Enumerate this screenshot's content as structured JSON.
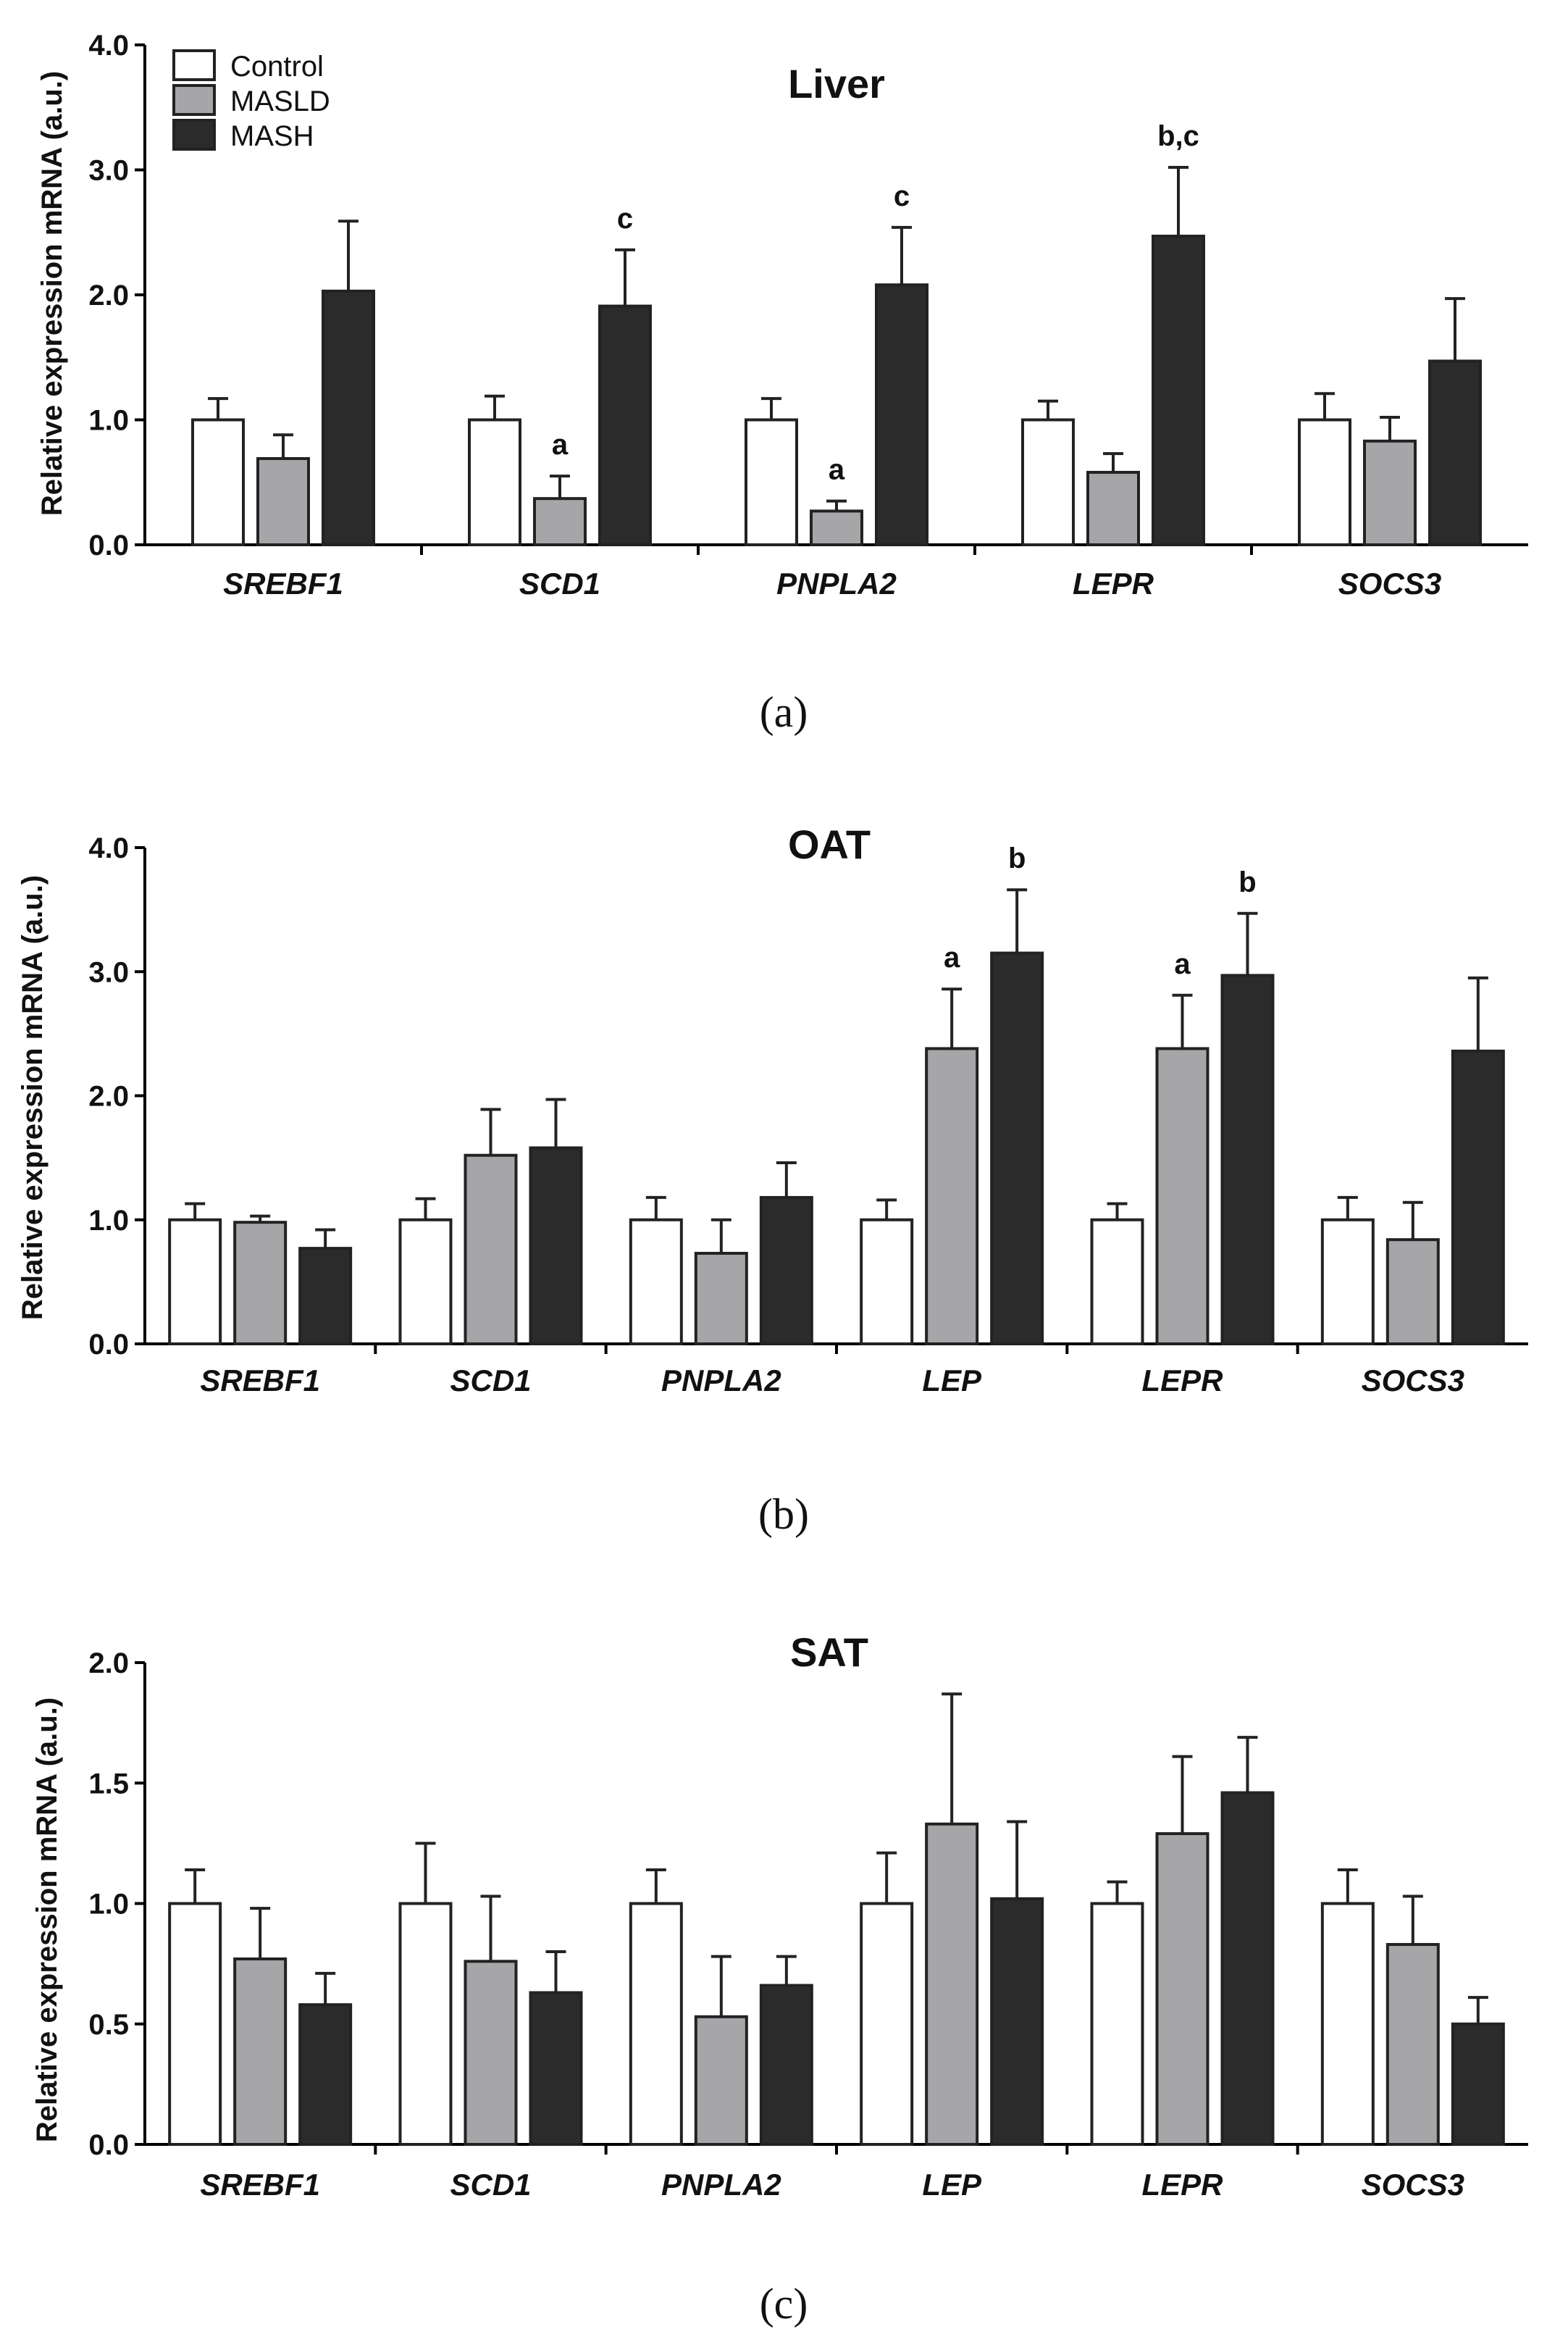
{
  "legend": {
    "entries": [
      {
        "name": "Control",
        "color": "#ffffff"
      },
      {
        "name": "MASLD",
        "color": "#a6a6a9"
      },
      {
        "name": "MASH",
        "color": "#2b2b2b"
      }
    ]
  },
  "chart_data": [
    {
      "type": "bar",
      "panel": "(a)",
      "title": "Liver",
      "ylabel": "Relative expression mRNA (a.u.)",
      "ylim": [
        0,
        4
      ],
      "yticks": [
        "0.0",
        "1.0",
        "2.0",
        "3.0",
        "4.0"
      ],
      "yticks_values": [
        0,
        1,
        2,
        3,
        4
      ],
      "categories": [
        "SREBF1",
        "SCD1",
        "PNPLA2",
        "LEPR",
        "SOCS3"
      ],
      "series": [
        {
          "name": "Control",
          "values": [
            1.0,
            1.0,
            1.0,
            1.0,
            1.0
          ],
          "errors": [
            0.17,
            0.19,
            0.17,
            0.15,
            0.21
          ],
          "sig": [
            "",
            "",
            "",
            "",
            ""
          ]
        },
        {
          "name": "MASLD",
          "values": [
            0.69,
            0.37,
            0.27,
            0.58,
            0.83
          ],
          "errors": [
            0.19,
            0.18,
            0.08,
            0.15,
            0.19
          ],
          "sig": [
            "",
            "a",
            "a",
            "",
            ""
          ]
        },
        {
          "name": "MASH",
          "values": [
            2.03,
            1.91,
            2.08,
            2.47,
            1.47
          ],
          "errors": [
            0.56,
            0.45,
            0.46,
            0.55,
            0.5
          ],
          "sig": [
            "",
            "c",
            "c",
            "b,c",
            ""
          ]
        }
      ]
    },
    {
      "type": "bar",
      "panel": "(b)",
      "title": "OAT",
      "ylabel": "Relative expression mRNA  (a.u.)",
      "ylim": [
        0,
        4
      ],
      "yticks": [
        "0.0",
        "1.0",
        "2.0",
        "3.0",
        "4.0"
      ],
      "yticks_values": [
        0,
        1,
        2,
        3,
        4
      ],
      "categories": [
        "SREBF1",
        "SCD1",
        "PNPLA2",
        "LEP",
        "LEPR",
        "SOCS3"
      ],
      "series": [
        {
          "name": "Control",
          "values": [
            1.0,
            1.0,
            1.0,
            1.0,
            1.0,
            1.0
          ],
          "errors": [
            0.13,
            0.17,
            0.18,
            0.16,
            0.13,
            0.18
          ],
          "sig": [
            "",
            "",
            "",
            "",
            "",
            ""
          ]
        },
        {
          "name": "MASLD",
          "values": [
            0.98,
            1.52,
            0.73,
            2.38,
            2.38,
            0.84
          ],
          "errors": [
            0.05,
            0.37,
            0.27,
            0.48,
            0.43,
            0.3
          ],
          "sig": [
            "",
            "",
            "",
            "a",
            "a",
            ""
          ]
        },
        {
          "name": "MASH",
          "values": [
            0.77,
            1.58,
            1.18,
            3.15,
            2.97,
            2.36
          ],
          "errors": [
            0.15,
            0.39,
            0.28,
            0.51,
            0.5,
            0.59
          ],
          "sig": [
            "",
            "",
            "",
            "b",
            "b",
            ""
          ]
        }
      ]
    },
    {
      "type": "bar",
      "panel": "(c)",
      "title": "SAT",
      "ylabel": "Relative expression mRNA  (a.u.)",
      "ylim": [
        0,
        2
      ],
      "yticks": [
        "0.0",
        "0.5",
        "1.0",
        "1.5",
        "2.0"
      ],
      "yticks_values": [
        0,
        0.5,
        1,
        1.5,
        2
      ],
      "categories": [
        "SREBF1",
        "SCD1",
        "PNPLA2",
        "LEP",
        "LEPR",
        "SOCS3"
      ],
      "series": [
        {
          "name": "Control",
          "values": [
            1.0,
            1.0,
            1.0,
            1.0,
            1.0,
            1.0
          ],
          "errors": [
            0.14,
            0.25,
            0.14,
            0.21,
            0.09,
            0.14
          ],
          "sig": [
            "",
            "",
            "",
            "",
            "",
            ""
          ]
        },
        {
          "name": "MASLD",
          "values": [
            0.77,
            0.76,
            0.53,
            1.33,
            1.29,
            0.83
          ],
          "errors": [
            0.21,
            0.27,
            0.25,
            0.54,
            0.32,
            0.2
          ],
          "sig": [
            "",
            "",
            "",
            "",
            "",
            ""
          ]
        },
        {
          "name": "MASH",
          "values": [
            0.58,
            0.63,
            0.66,
            1.02,
            1.46,
            0.5
          ],
          "errors": [
            0.13,
            0.17,
            0.12,
            0.32,
            0.23,
            0.11
          ],
          "sig": [
            "",
            "",
            "",
            "",
            "",
            ""
          ]
        }
      ]
    }
  ]
}
